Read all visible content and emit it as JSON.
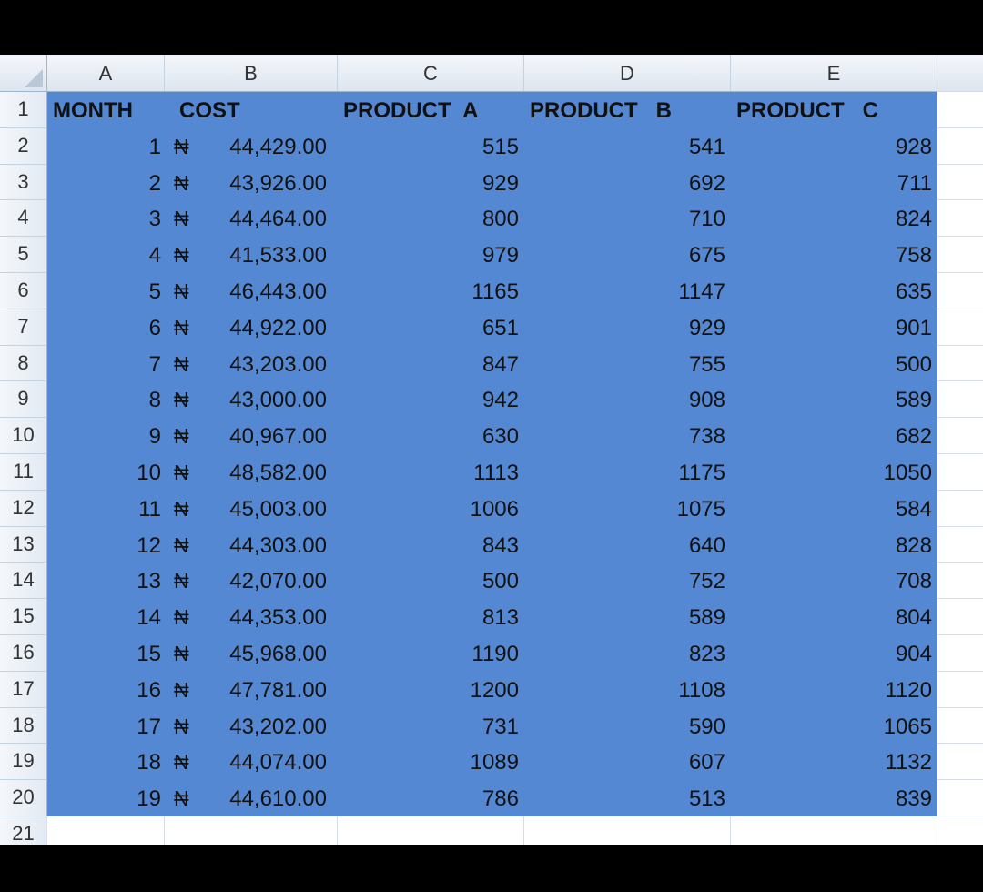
{
  "column_headers": [
    "A",
    "B",
    "C",
    "D",
    "E"
  ],
  "row_numbers": [
    "1",
    "2",
    "3",
    "4",
    "5",
    "6",
    "7",
    "8",
    "9",
    "10",
    "11",
    "12",
    "13",
    "14",
    "15",
    "16",
    "17",
    "18",
    "19",
    "20",
    "21"
  ],
  "table": {
    "headers": [
      "MONTH",
      "COST",
      "PRODUCT  A",
      "PRODUCT   B",
      "PRODUCT   C"
    ],
    "currency_symbol": "₦",
    "rows": [
      [
        "1",
        "44,429.00",
        "515",
        "541",
        "928"
      ],
      [
        "2",
        "43,926.00",
        "929",
        "692",
        "711"
      ],
      [
        "3",
        "44,464.00",
        "800",
        "710",
        "824"
      ],
      [
        "4",
        "41,533.00",
        "979",
        "675",
        "758"
      ],
      [
        "5",
        "46,443.00",
        "1165",
        "1147",
        "635"
      ],
      [
        "6",
        "44,922.00",
        "651",
        "929",
        "901"
      ],
      [
        "7",
        "43,203.00",
        "847",
        "755",
        "500"
      ],
      [
        "8",
        "43,000.00",
        "942",
        "908",
        "589"
      ],
      [
        "9",
        "40,967.00",
        "630",
        "738",
        "682"
      ],
      [
        "10",
        "48,582.00",
        "1113",
        "1175",
        "1050"
      ],
      [
        "11",
        "45,003.00",
        "1006",
        "1075",
        "584"
      ],
      [
        "12",
        "44,303.00",
        "843",
        "640",
        "828"
      ],
      [
        "13",
        "42,070.00",
        "500",
        "752",
        "708"
      ],
      [
        "14",
        "44,353.00",
        "813",
        "589",
        "804"
      ],
      [
        "15",
        "45,968.00",
        "1190",
        "823",
        "904"
      ],
      [
        "16",
        "47,781.00",
        "1200",
        "1108",
        "1120"
      ],
      [
        "17",
        "43,202.00",
        "731",
        "590",
        "1065"
      ],
      [
        "18",
        "44,074.00",
        "1089",
        "607",
        "1132"
      ],
      [
        "19",
        "44,610.00",
        "786",
        "513",
        "839"
      ]
    ]
  },
  "colors": {
    "selection": "#5488d2",
    "header_bg": "#dde5ef"
  }
}
